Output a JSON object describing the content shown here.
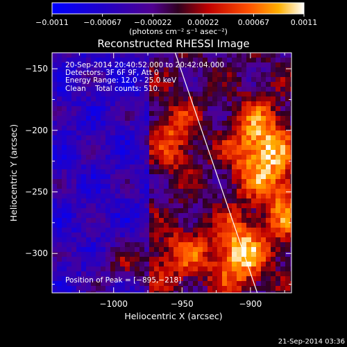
{
  "chart_data": {
    "type": "heatmap",
    "title": "Reconstructed RHESSI Image",
    "xlabel": "Heliocentric X (arcsec)",
    "ylabel": "Heliocentric Y (arcsec)",
    "xlim": [
      -1045,
      -870
    ],
    "ylim": [
      -332,
      -137
    ],
    "x_ticks": [
      {
        "value": -1000,
        "label": "−1000"
      },
      {
        "value": -950,
        "label": "−950"
      },
      {
        "value": -900,
        "label": "−900"
      }
    ],
    "y_ticks": [
      {
        "value": -150,
        "label": "−150"
      },
      {
        "value": -200,
        "label": "−200"
      },
      {
        "value": -250,
        "label": "−250"
      },
      {
        "value": -300,
        "label": "−300"
      }
    ],
    "colorbar": {
      "range": [
        -0.0011,
        0.0011
      ],
      "tick_labels": [
        "−0.0011",
        "−0.00067",
        "−0.00022",
        "0.00022",
        "0.00067",
        "0.0011"
      ],
      "unit_label": "(photons cm⁻² s⁻¹ asec⁻²)"
    },
    "annotations": [
      "20-Sep-2014 20:40:52.000 to 20:42:04.000",
      "Detectors: 3F 6F 9F, Att 0",
      "Energy Range: 12.0 - 25.0 keV",
      "Clean    Total counts: 510.",
      "Position of Peak = [−895,−218]"
    ],
    "limb_line": [
      [
        -955,
        -137
      ],
      [
        -895,
        -332
      ]
    ],
    "peak_position": [
      -895,
      -218
    ],
    "sources": [
      {
        "x": -893,
        "y": -215,
        "amp": 1.0,
        "sx": 15,
        "sy": 25
      },
      {
        "x": -908,
        "y": -300,
        "amp": 0.95,
        "sx": 13,
        "sy": 20
      },
      {
        "x": -955,
        "y": -205,
        "amp": 0.55,
        "sx": 12,
        "sy": 22
      },
      {
        "x": -875,
        "y": -265,
        "amp": 0.55,
        "sx": 10,
        "sy": 25
      },
      {
        "x": -950,
        "y": -300,
        "amp": 0.5,
        "sx": 16,
        "sy": 18
      },
      {
        "x": -990,
        "y": -310,
        "amp": 0.45,
        "sx": 15,
        "sy": 12
      }
    ]
  },
  "footer": {
    "timestamp": "21-Sep-2014 03:36"
  }
}
